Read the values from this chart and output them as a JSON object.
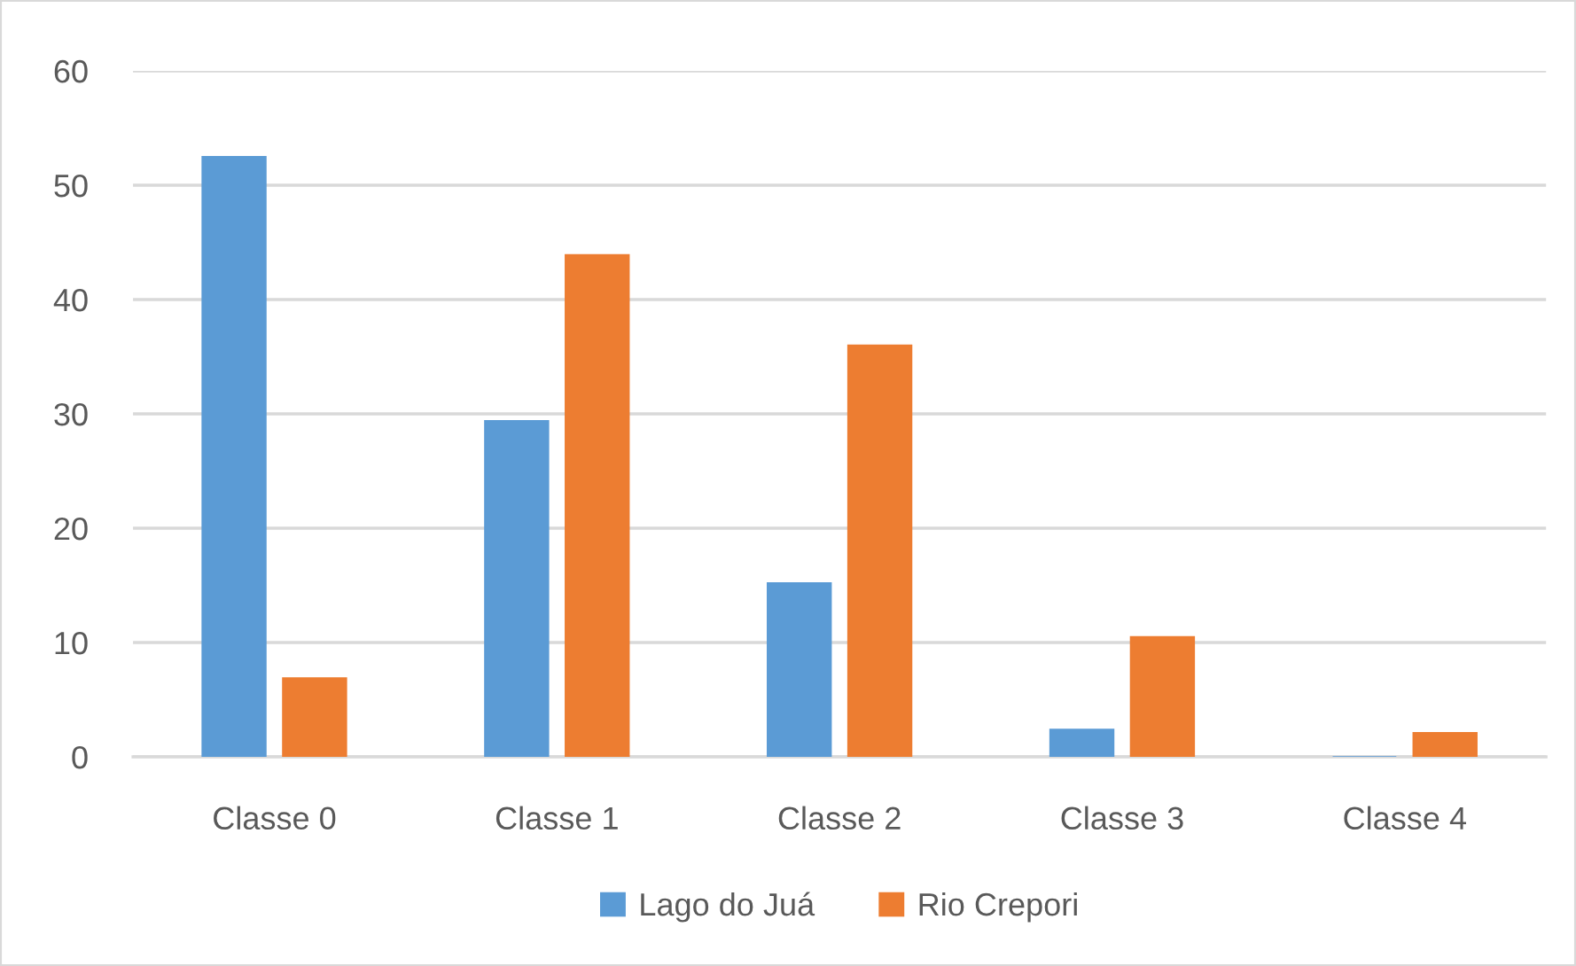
{
  "chart_data": {
    "type": "bar",
    "categories": [
      "Classe 0",
      "Classe 1",
      "Classe 2",
      "Classe 3",
      "Classe 4"
    ],
    "series": [
      {
        "name": "Lago do Juá",
        "color": "#5b9bd5",
        "values": [
          52.5,
          29.4,
          15.2,
          2.4,
          0
        ]
      },
      {
        "name": "Rio Crepori",
        "color": "#ed7d31",
        "values": [
          6.9,
          43.9,
          36.0,
          10.5,
          2.1
        ]
      }
    ],
    "ylim": [
      0,
      60
    ],
    "yticks": [
      0,
      10,
      20,
      30,
      40,
      50,
      60
    ],
    "grid": "y",
    "legend": "bottom"
  }
}
